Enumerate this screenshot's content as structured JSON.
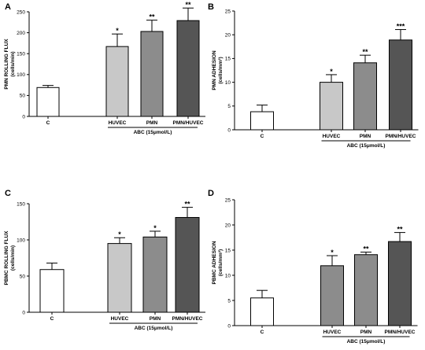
{
  "group_label": "ABC (15μmol/L)",
  "chart_data": [
    {
      "panel": "A",
      "type": "bar",
      "ylabel": [
        "PMN ROLLING FLUX",
        "(cells/min)"
      ],
      "ylim": [
        0,
        250
      ],
      "yticks": [
        0,
        50,
        100,
        150,
        200,
        250
      ],
      "categories": [
        "C",
        "HUVEC",
        "PMN",
        "PMN/HUVEC"
      ],
      "values": [
        69,
        167,
        203,
        229
      ],
      "errors": [
        5,
        30,
        27,
        30
      ],
      "significance": [
        "",
        "*",
        "**",
        "**"
      ],
      "colors": [
        "#ffffff",
        "#c8c8c8",
        "#8c8c8c",
        "#555555"
      ]
    },
    {
      "panel": "B",
      "type": "bar",
      "ylabel": [
        "PMN ADHESION",
        "(cells/mm²)"
      ],
      "ylim": [
        0,
        25
      ],
      "yticks": [
        0,
        5,
        10,
        15,
        20,
        25
      ],
      "categories": [
        "C",
        "HUVEC",
        "PMN",
        "PMN/HUVEC"
      ],
      "values": [
        3.8,
        10,
        14.1,
        18.9
      ],
      "errors": [
        1.4,
        1.6,
        1.6,
        2.2
      ],
      "significance": [
        "",
        "*",
        "**",
        "***"
      ],
      "colors": [
        "#ffffff",
        "#c8c8c8",
        "#8c8c8c",
        "#555555"
      ]
    },
    {
      "panel": "C",
      "type": "bar",
      "ylabel": [
        "PBMC ROLLING FLUX",
        "(cells/min)"
      ],
      "ylim": [
        0,
        150
      ],
      "yticks": [
        0,
        50,
        100,
        150
      ],
      "categories": [
        "C",
        "HUVEC",
        "PMN",
        "PMN/HUVEC"
      ],
      "values": [
        59,
        95,
        104,
        131
      ],
      "errors": [
        9,
        8,
        8,
        14
      ],
      "significance": [
        "",
        "*",
        "*",
        "**"
      ],
      "colors": [
        "#ffffff",
        "#c8c8c8",
        "#8c8c8c",
        "#555555"
      ]
    },
    {
      "panel": "D",
      "type": "bar",
      "ylabel": [
        "PBMC ADHESION",
        "(cells/mm²)"
      ],
      "ylim": [
        0,
        25
      ],
      "yticks": [
        0,
        5,
        10,
        15,
        20,
        25
      ],
      "categories": [
        "C",
        "HUVEC",
        "PMN",
        "PMN/HUVEC"
      ],
      "values": [
        5.5,
        11.9,
        14.1,
        16.7
      ],
      "errors": [
        1.5,
        2.0,
        0.5,
        1.8
      ],
      "significance": [
        "",
        "*",
        "**",
        "**"
      ],
      "colors": [
        "#ffffff",
        "#8c8c8c",
        "#8c8c8c",
        "#555555"
      ]
    }
  ]
}
